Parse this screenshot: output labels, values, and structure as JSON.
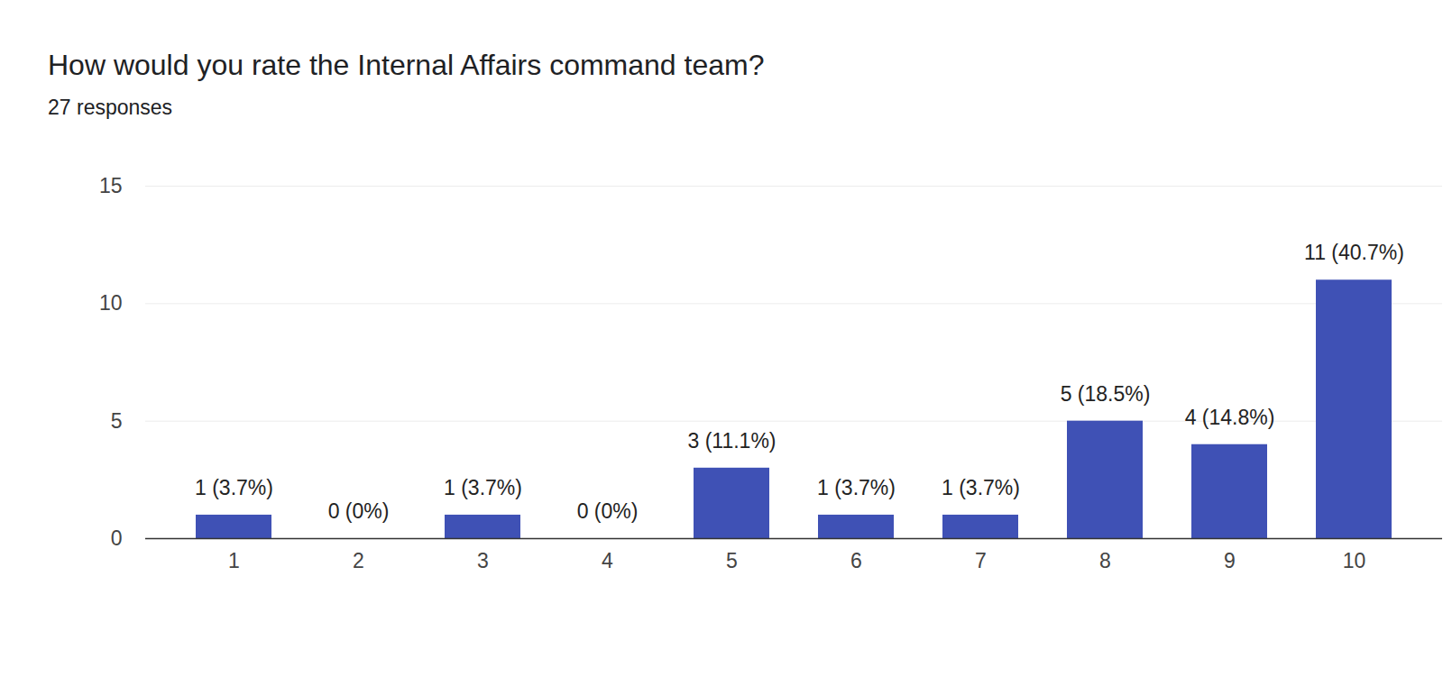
{
  "chart_data": {
    "type": "bar",
    "title": "How would you rate the Internal Affairs command team?",
    "subtitle": "27 responses",
    "categories": [
      "1",
      "2",
      "3",
      "4",
      "5",
      "6",
      "7",
      "8",
      "9",
      "10"
    ],
    "values": [
      1,
      0,
      1,
      0,
      3,
      1,
      1,
      5,
      4,
      11
    ],
    "value_labels": [
      "1 (3.7%)",
      "0 (0%)",
      "1 (3.7%)",
      "0 (0%)",
      "3 (11.1%)",
      "1 (3.7%)",
      "1 (3.7%)",
      "5 (18.5%)",
      "4 (14.8%)",
      "11 (40.7%)"
    ],
    "color": "#3f51b5",
    "ylim": [
      0,
      15
    ],
    "yticks": [
      0,
      5,
      10,
      15
    ],
    "grid": true,
    "data_labels": true
  }
}
